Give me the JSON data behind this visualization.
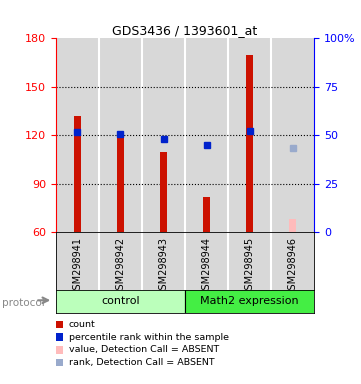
{
  "title": "GDS3436 / 1393601_at",
  "samples": [
    "GSM298941",
    "GSM298942",
    "GSM298943",
    "GSM298944",
    "GSM298945",
    "GSM298946"
  ],
  "bar_values": [
    132,
    121,
    110,
    82,
    170,
    null
  ],
  "bar_color": "#cc1100",
  "absent_bar_value": 68,
  "absent_bar_color": "#ffbbbb",
  "blue_dots": [
    122,
    121,
    118,
    114,
    123,
    null
  ],
  "absent_dot_value": 112,
  "absent_dot_color": "#99aacc",
  "blue_dot_color": "#0022cc",
  "ylim_left": [
    60,
    180
  ],
  "ylim_right": [
    0,
    100
  ],
  "yticks_left": [
    60,
    90,
    120,
    150,
    180
  ],
  "yticks_right": [
    0,
    25,
    50,
    75,
    100
  ],
  "ytick_labels_right": [
    "0",
    "25",
    "50",
    "75",
    "100%"
  ],
  "dotted_lines": [
    90,
    120,
    150
  ],
  "control_color": "#bbffbb",
  "math2_color": "#44ee44",
  "control_label": "control",
  "math2_label": "Math2 expression",
  "protocol_label": "protocol",
  "cell_bg_color": "#d8d8d8",
  "bar_width": 0.18,
  "legend_items": [
    {
      "color": "#cc1100",
      "label": "count"
    },
    {
      "color": "#0022cc",
      "label": "percentile rank within the sample"
    },
    {
      "color": "#ffbbbb",
      "label": "value, Detection Call = ABSENT"
    },
    {
      "color": "#99aacc",
      "label": "rank, Detection Call = ABSENT"
    }
  ]
}
